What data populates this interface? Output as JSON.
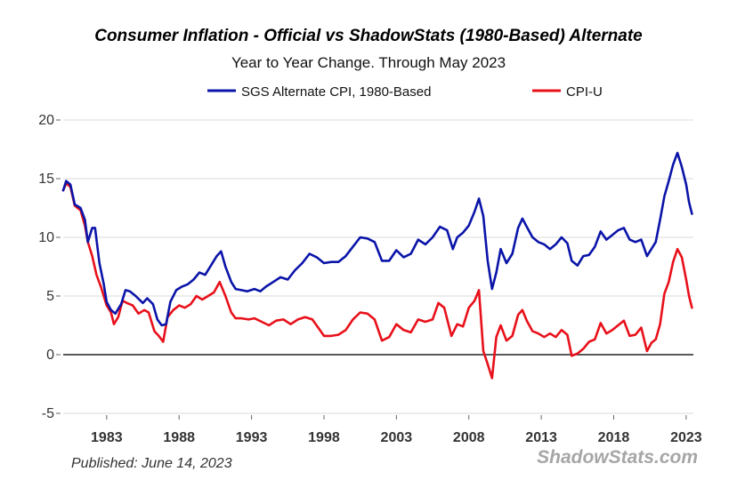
{
  "chart_data": {
    "type": "line",
    "title": "Consumer Inflation - Official vs ShadowStats (1980-Based) Alternate",
    "subtitle": "Year to Year Change. Through May 2023",
    "ylim": [
      -5,
      20
    ],
    "yticks": [
      -5,
      0,
      5,
      10,
      15,
      20
    ],
    "xlim": [
      1980,
      2023.5
    ],
    "xticks": [
      1983,
      1988,
      1993,
      1998,
      2003,
      2008,
      2013,
      2018,
      2023
    ],
    "grid": true,
    "legend": "top-center",
    "zero_line": true,
    "series": [
      {
        "name": "SGS Alternate CPI, 1980-Based",
        "color": "#0a14a8",
        "points": [
          [
            1980.0,
            14.0
          ],
          [
            1980.2,
            14.8
          ],
          [
            1980.5,
            14.5
          ],
          [
            1980.8,
            12.8
          ],
          [
            1981.2,
            12.5
          ],
          [
            1981.5,
            11.5
          ],
          [
            1981.7,
            9.6
          ],
          [
            1982.0,
            10.8
          ],
          [
            1982.2,
            10.8
          ],
          [
            1982.5,
            7.8
          ],
          [
            1982.8,
            6.0
          ],
          [
            1983.0,
            4.5
          ],
          [
            1983.3,
            3.8
          ],
          [
            1983.6,
            3.5
          ],
          [
            1984.0,
            4.3
          ],
          [
            1984.3,
            5.5
          ],
          [
            1984.6,
            5.4
          ],
          [
            1985.0,
            5.0
          ],
          [
            1985.5,
            4.4
          ],
          [
            1985.8,
            4.8
          ],
          [
            1986.2,
            4.3
          ],
          [
            1986.5,
            3.0
          ],
          [
            1986.8,
            2.5
          ],
          [
            1987.1,
            2.6
          ],
          [
            1987.4,
            4.5
          ],
          [
            1987.8,
            5.5
          ],
          [
            1988.2,
            5.8
          ],
          [
            1988.6,
            6.0
          ],
          [
            1989.0,
            6.4
          ],
          [
            1989.4,
            7.0
          ],
          [
            1989.8,
            6.8
          ],
          [
            1990.2,
            7.6
          ],
          [
            1990.6,
            8.4
          ],
          [
            1990.9,
            8.8
          ],
          [
            1991.2,
            7.5
          ],
          [
            1991.6,
            6.2
          ],
          [
            1991.9,
            5.6
          ],
          [
            1992.3,
            5.5
          ],
          [
            1992.7,
            5.4
          ],
          [
            1993.2,
            5.6
          ],
          [
            1993.6,
            5.4
          ],
          [
            1994.0,
            5.8
          ],
          [
            1994.5,
            6.2
          ],
          [
            1995.0,
            6.6
          ],
          [
            1995.5,
            6.4
          ],
          [
            1996.0,
            7.2
          ],
          [
            1996.5,
            7.8
          ],
          [
            1997.0,
            8.6
          ],
          [
            1997.5,
            8.3
          ],
          [
            1998.0,
            7.8
          ],
          [
            1998.5,
            7.9
          ],
          [
            1999.0,
            7.9
          ],
          [
            1999.5,
            8.4
          ],
          [
            2000.0,
            9.2
          ],
          [
            2000.5,
            10.0
          ],
          [
            2001.0,
            9.9
          ],
          [
            2001.5,
            9.6
          ],
          [
            2002.0,
            8.0
          ],
          [
            2002.5,
            8.0
          ],
          [
            2003.0,
            8.9
          ],
          [
            2003.5,
            8.3
          ],
          [
            2004.0,
            8.6
          ],
          [
            2004.5,
            9.8
          ],
          [
            2005.0,
            9.4
          ],
          [
            2005.5,
            10.0
          ],
          [
            2006.0,
            10.9
          ],
          [
            2006.5,
            10.6
          ],
          [
            2006.9,
            9.0
          ],
          [
            2007.2,
            10.0
          ],
          [
            2007.6,
            10.4
          ],
          [
            2008.0,
            11.0
          ],
          [
            2008.4,
            12.2
          ],
          [
            2008.7,
            13.3
          ],
          [
            2009.0,
            11.8
          ],
          [
            2009.3,
            8.0
          ],
          [
            2009.6,
            5.6
          ],
          [
            2009.9,
            7.0
          ],
          [
            2010.2,
            9.0
          ],
          [
            2010.6,
            7.8
          ],
          [
            2011.0,
            8.6
          ],
          [
            2011.4,
            10.8
          ],
          [
            2011.7,
            11.6
          ],
          [
            2012.0,
            10.9
          ],
          [
            2012.4,
            10.0
          ],
          [
            2012.8,
            9.6
          ],
          [
            2013.2,
            9.4
          ],
          [
            2013.6,
            9.0
          ],
          [
            2014.0,
            9.4
          ],
          [
            2014.4,
            10.0
          ],
          [
            2014.8,
            9.5
          ],
          [
            2015.1,
            8.0
          ],
          [
            2015.5,
            7.6
          ],
          [
            2015.9,
            8.4
          ],
          [
            2016.3,
            8.5
          ],
          [
            2016.7,
            9.2
          ],
          [
            2017.1,
            10.5
          ],
          [
            2017.5,
            9.8
          ],
          [
            2017.9,
            10.2
          ],
          [
            2018.3,
            10.6
          ],
          [
            2018.7,
            10.8
          ],
          [
            2019.1,
            9.8
          ],
          [
            2019.5,
            9.6
          ],
          [
            2019.9,
            9.8
          ],
          [
            2020.3,
            8.4
          ],
          [
            2020.6,
            9.0
          ],
          [
            2020.9,
            9.6
          ],
          [
            2021.2,
            11.5
          ],
          [
            2021.5,
            13.5
          ],
          [
            2021.8,
            14.8
          ],
          [
            2022.1,
            16.2
          ],
          [
            2022.4,
            17.2
          ],
          [
            2022.7,
            16.0
          ],
          [
            2023.0,
            14.5
          ],
          [
            2023.2,
            13.0
          ],
          [
            2023.4,
            12.0
          ]
        ]
      },
      {
        "name": "CPI-U",
        "color": "#e8101a",
        "points": [
          [
            1980.0,
            14.0
          ],
          [
            1980.2,
            14.6
          ],
          [
            1980.5,
            14.3
          ],
          [
            1980.8,
            12.7
          ],
          [
            1981.2,
            12.3
          ],
          [
            1981.5,
            11.0
          ],
          [
            1981.7,
            9.6
          ],
          [
            1982.0,
            8.4
          ],
          [
            1982.3,
            6.8
          ],
          [
            1982.6,
            5.8
          ],
          [
            1983.0,
            4.2
          ],
          [
            1983.3,
            3.6
          ],
          [
            1983.5,
            2.6
          ],
          [
            1983.8,
            3.2
          ],
          [
            1984.1,
            4.6
          ],
          [
            1984.4,
            4.4
          ],
          [
            1984.8,
            4.2
          ],
          [
            1985.2,
            3.5
          ],
          [
            1985.6,
            3.8
          ],
          [
            1985.9,
            3.6
          ],
          [
            1986.3,
            2.0
          ],
          [
            1986.6,
            1.6
          ],
          [
            1986.9,
            1.1
          ],
          [
            1987.2,
            3.2
          ],
          [
            1987.6,
            3.8
          ],
          [
            1988.0,
            4.2
          ],
          [
            1988.4,
            4.0
          ],
          [
            1988.8,
            4.3
          ],
          [
            1989.2,
            5.0
          ],
          [
            1989.6,
            4.7
          ],
          [
            1990.0,
            5.0
          ],
          [
            1990.4,
            5.3
          ],
          [
            1990.8,
            6.2
          ],
          [
            1991.2,
            5.0
          ],
          [
            1991.6,
            3.6
          ],
          [
            1991.9,
            3.1
          ],
          [
            1992.3,
            3.1
          ],
          [
            1992.8,
            3.0
          ],
          [
            1993.2,
            3.1
          ],
          [
            1993.7,
            2.8
          ],
          [
            1994.2,
            2.5
          ],
          [
            1994.7,
            2.9
          ],
          [
            1995.2,
            3.0
          ],
          [
            1995.7,
            2.6
          ],
          [
            1996.2,
            3.0
          ],
          [
            1996.7,
            3.2
          ],
          [
            1997.2,
            3.0
          ],
          [
            1997.6,
            2.3
          ],
          [
            1998.0,
            1.6
          ],
          [
            1998.5,
            1.6
          ],
          [
            1999.0,
            1.7
          ],
          [
            1999.5,
            2.1
          ],
          [
            2000.0,
            3.0
          ],
          [
            2000.5,
            3.6
          ],
          [
            2001.0,
            3.5
          ],
          [
            2001.5,
            3.0
          ],
          [
            2002.0,
            1.2
          ],
          [
            2002.5,
            1.5
          ],
          [
            2003.0,
            2.6
          ],
          [
            2003.5,
            2.1
          ],
          [
            2004.0,
            1.9
          ],
          [
            2004.5,
            3.0
          ],
          [
            2005.0,
            2.8
          ],
          [
            2005.5,
            3.0
          ],
          [
            2005.9,
            4.4
          ],
          [
            2006.3,
            4.0
          ],
          [
            2006.8,
            1.6
          ],
          [
            2007.2,
            2.6
          ],
          [
            2007.6,
            2.4
          ],
          [
            2008.0,
            4.0
          ],
          [
            2008.4,
            4.6
          ],
          [
            2008.7,
            5.5
          ],
          [
            2009.0,
            0.3
          ],
          [
            2009.3,
            -0.8
          ],
          [
            2009.6,
            -2.0
          ],
          [
            2009.9,
            1.5
          ],
          [
            2010.2,
            2.5
          ],
          [
            2010.6,
            1.2
          ],
          [
            2011.0,
            1.6
          ],
          [
            2011.4,
            3.4
          ],
          [
            2011.7,
            3.8
          ],
          [
            2012.0,
            2.9
          ],
          [
            2012.4,
            2.0
          ],
          [
            2012.8,
            1.8
          ],
          [
            2013.2,
            1.5
          ],
          [
            2013.6,
            1.8
          ],
          [
            2014.0,
            1.5
          ],
          [
            2014.4,
            2.1
          ],
          [
            2014.8,
            1.7
          ],
          [
            2015.1,
            -0.1
          ],
          [
            2015.5,
            0.1
          ],
          [
            2015.9,
            0.5
          ],
          [
            2016.3,
            1.1
          ],
          [
            2016.7,
            1.3
          ],
          [
            2017.1,
            2.7
          ],
          [
            2017.5,
            1.8
          ],
          [
            2017.9,
            2.1
          ],
          [
            2018.3,
            2.5
          ],
          [
            2018.7,
            2.9
          ],
          [
            2019.1,
            1.6
          ],
          [
            2019.5,
            1.7
          ],
          [
            2019.9,
            2.3
          ],
          [
            2020.3,
            0.3
          ],
          [
            2020.6,
            1.0
          ],
          [
            2020.9,
            1.3
          ],
          [
            2021.2,
            2.6
          ],
          [
            2021.5,
            5.2
          ],
          [
            2021.8,
            6.2
          ],
          [
            2022.1,
            7.9
          ],
          [
            2022.4,
            9.0
          ],
          [
            2022.7,
            8.3
          ],
          [
            2023.0,
            6.4
          ],
          [
            2023.2,
            5.0
          ],
          [
            2023.4,
            4.0
          ]
        ]
      }
    ]
  },
  "published": "Published: June 14, 2023",
  "brand": "ShadowStats.com"
}
